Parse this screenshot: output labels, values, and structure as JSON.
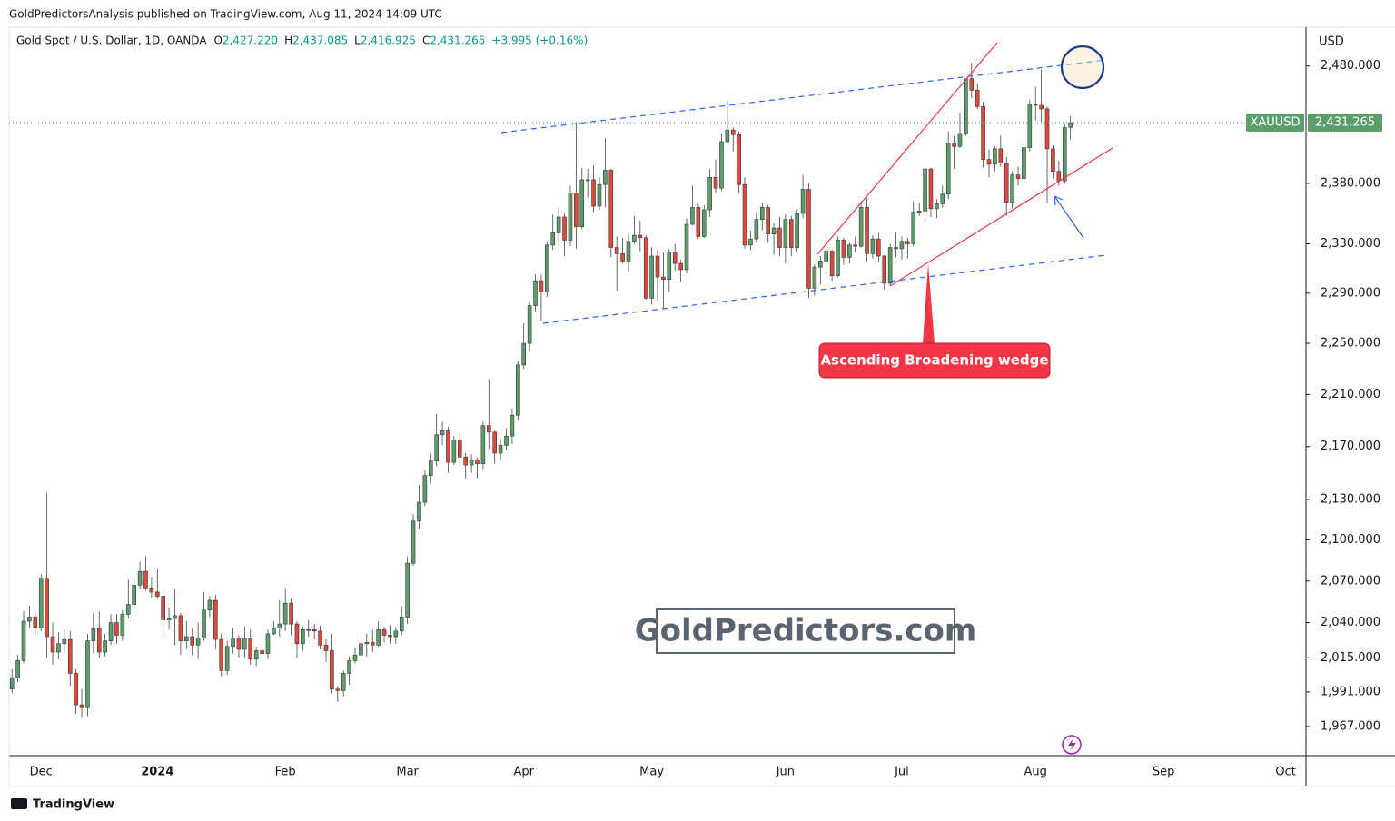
{
  "header": {
    "publisher": "GoldPredictorsAnalysis published on TradingView.com, Aug 11, 2024 14:09 UTC"
  },
  "footer": {
    "brand": "TradingView"
  },
  "chart_data": {
    "type": "candlestick",
    "title": "Gold Spot / U.S. Dollar, 1D, OANDA",
    "ohlc_legend": [
      {
        "label": "O",
        "value": "2,427.220"
      },
      {
        "label": "H",
        "value": "2,437.085"
      },
      {
        "label": "L",
        "value": "2,416.925"
      },
      {
        "label": "C",
        "value": "2,431.265"
      }
    ],
    "change": "+3.995 (+0.16%)",
    "currency": "USD",
    "symbol": "XAUUSD",
    "last_price": {
      "value": 2431.265,
      "label": "2,431.265"
    },
    "annotations": {
      "pattern_label": "Ascending Broadening wedge",
      "watermark": "GoldPredictors.com"
    },
    "up_color": "#5b9e6c",
    "down_color": "#dc4a3d",
    "log_scale": true,
    "grid": false,
    "ylim": [
      1947,
      2514
    ],
    "yticks": [
      {
        "value": 1967,
        "label": "1,967.000"
      },
      {
        "value": 1991,
        "label": "1,991.000"
      },
      {
        "value": 2015,
        "label": "2,015.000"
      },
      {
        "value": 2040,
        "label": "2,040.000"
      },
      {
        "value": 2070,
        "label": "2,070.000"
      },
      {
        "value": 2100,
        "label": "2,100.000"
      },
      {
        "value": 2130,
        "label": "2,130.000"
      },
      {
        "value": 2170,
        "label": "2,170.000"
      },
      {
        "value": 2210,
        "label": "2,210.000"
      },
      {
        "value": 2250,
        "label": "2,250.000"
      },
      {
        "value": 2290,
        "label": "2,290.000"
      },
      {
        "value": 2330,
        "label": "2,330.000"
      },
      {
        "value": 2380,
        "label": "2,380.000"
      },
      {
        "value": 2480,
        "label": "2,480.000"
      }
    ],
    "categories": [
      null,
      null,
      null,
      null,
      null,
      "Dec",
      null,
      null,
      null,
      null,
      null,
      null,
      null,
      null,
      null,
      null,
      null,
      null,
      null,
      null,
      null,
      null,
      null,
      null,
      null,
      "2024",
      null,
      null,
      null,
      null,
      null,
      null,
      null,
      null,
      null,
      null,
      null,
      null,
      null,
      null,
      null,
      null,
      null,
      null,
      null,
      null,
      null,
      "Feb",
      null,
      null,
      null,
      null,
      null,
      null,
      null,
      null,
      null,
      null,
      null,
      null,
      null,
      null,
      null,
      null,
      null,
      null,
      null,
      null,
      "Mar",
      null,
      null,
      null,
      null,
      null,
      null,
      null,
      null,
      null,
      null,
      null,
      null,
      null,
      null,
      null,
      null,
      null,
      null,
      null,
      "Apr",
      null,
      null,
      null,
      null,
      null,
      null,
      null,
      null,
      null,
      null,
      null,
      null,
      null,
      null,
      null,
      null,
      null,
      null,
      null,
      null,
      null,
      "May",
      null,
      null,
      null,
      null,
      null,
      null,
      null,
      null,
      null,
      null,
      null,
      null,
      null,
      null,
      null,
      null,
      null,
      null,
      null,
      null,
      null,
      null,
      "Jun",
      null,
      null,
      null,
      null,
      null,
      null,
      null,
      null,
      null,
      null,
      null,
      null,
      null,
      null,
      null,
      null,
      null,
      null,
      null,
      "Jul",
      null,
      null,
      null,
      null,
      null,
      null,
      null,
      null,
      null,
      null,
      null,
      null,
      null,
      null,
      null,
      null,
      null,
      null,
      null,
      null,
      null,
      null,
      "Aug",
      null,
      null,
      null,
      null,
      null,
      null,
      null,
      null,
      null,
      null,
      null,
      null,
      null,
      null,
      null,
      null,
      null,
      null,
      null,
      null,
      null,
      "Sep",
      null,
      null,
      null,
      null,
      null,
      null,
      null,
      null,
      null,
      null,
      null,
      null,
      null,
      null,
      null,
      null,
      null,
      null,
      null,
      null,
      "Oct",
      null,
      null,
      null
    ],
    "open": [
      1993,
      2001,
      2013,
      2041,
      2044,
      2036,
      2072,
      2030,
      2019,
      2025,
      2028,
      2004,
      1982,
      1980,
      2027,
      2036,
      2019,
      2027,
      2040,
      2031,
      2046,
      2053,
      2067,
      2077,
      2065,
      2062,
      2059,
      2042,
      2043,
      2045,
      2027,
      2030,
      2024,
      2029,
      2049,
      2056,
      2028,
      2006,
      2023,
      2029,
      2021,
      2029,
      2014,
      2020,
      2018,
      2032,
      2036,
      2039,
      2054,
      2039,
      2025,
      2035,
      2035,
      2034,
      2024,
      2020,
      1993,
      1992,
      2004,
      2013,
      2017,
      2025,
      2026,
      2024,
      2035,
      2031,
      2030,
      2034,
      2044,
      2083,
      2114,
      2128,
      2148,
      2159,
      2179,
      2182,
      2158,
      2175,
      2162,
      2156,
      2160,
      2157,
      2186,
      2181,
      2165,
      2171,
      2178,
      2194,
      2233,
      2250,
      2280,
      2300,
      2291,
      2329,
      2339,
      2352,
      2333,
      2372,
      2344,
      2383,
      2383,
      2361,
      2379,
      2391,
      2327,
      2322,
      2316,
      2332,
      2337,
      2335,
      2286,
      2320,
      2303,
      2301,
      2323,
      2314,
      2309,
      2346,
      2360,
      2336,
      2358,
      2385,
      2376,
      2415,
      2425,
      2421,
      2379,
      2329,
      2334,
      2350,
      2360,
      2338,
      2343,
      2327,
      2350,
      2327,
      2355,
      2375,
      2294,
      2311,
      2316,
      2324,
      2304,
      2333,
      2319,
      2329,
      2328,
      2360,
      2322,
      2334,
      2320,
      2298,
      2327,
      2326,
      2332,
      2330,
      2356,
      2357,
      2392,
      2359,
      2363,
      2371,
      2414,
      2411,
      2422,
      2469,
      2459,
      2445,
      2400,
      2396,
      2409,
      2397,
      2364,
      2387,
      2384,
      2410,
      2447,
      2446,
      2443,
      2409,
      2390,
      2382,
      2427.22,
      null,
      null,
      null,
      null,
      null,
      null,
      null,
      null,
      null,
      null,
      null,
      null,
      null,
      null,
      null,
      null,
      null,
      null,
      null,
      null,
      null,
      null,
      null,
      null,
      null,
      null,
      null,
      null,
      null,
      null,
      null,
      null,
      null,
      null,
      null,
      null,
      null,
      null,
      null,
      null
    ],
    "high": [
      2007,
      2017,
      2048,
      2052,
      2048,
      2075,
      2135,
      2040,
      2033,
      2035,
      2034,
      2007,
      1993,
      2032,
      2047,
      2048,
      2032,
      2046,
      2046,
      2049,
      2071,
      2070,
      2084,
      2088,
      2073,
      2079,
      2064,
      2051,
      2064,
      2047,
      2041,
      2036,
      2040,
      2062,
      2059,
      2060,
      2032,
      2027,
      2036,
      2031,
      2037,
      2035,
      2023,
      2025,
      2035,
      2041,
      2056,
      2065,
      2057,
      2041,
      2037,
      2042,
      2039,
      2038,
      2028,
      2032,
      1995,
      2006,
      2016,
      2022,
      2031,
      2032,
      2035,
      2041,
      2037,
      2038,
      2037,
      2052,
      2088,
      2119,
      2141,
      2152,
      2165,
      2195,
      2189,
      2185,
      2178,
      2180,
      2165,
      2164,
      2162,
      2189,
      2222,
      2182,
      2176,
      2184,
      2199,
      2236,
      2266,
      2283,
      2305,
      2305,
      2331,
      2354,
      2360,
      2355,
      2378,
      2431,
      2393,
      2392,
      2395,
      2385,
      2418,
      2392,
      2336,
      2335,
      2338,
      2353,
      2349,
      2337,
      2327,
      2325,
      2323,
      2326,
      2330,
      2317,
      2351,
      2378,
      2363,
      2362,
      2392,
      2400,
      2422,
      2450,
      2427,
      2424,
      2385,
      2341,
      2356,
      2364,
      2362,
      2347,
      2352,
      2354,
      2353,
      2358,
      2387,
      2380,
      2313,
      2320,
      2339,
      2325,
      2336,
      2335,
      2331,
      2336,
      2365,
      2368,
      2337,
      2339,
      2321,
      2330,
      2339,
      2336,
      2335,
      2365,
      2364,
      2392,
      2393,
      2367,
      2378,
      2424,
      2420,
      2440,
      2469,
      2483,
      2465,
      2449,
      2408,
      2411,
      2420,
      2402,
      2390,
      2394,
      2413,
      2451,
      2462,
      2477,
      2445,
      2412,
      2399,
      2430,
      2437.085,
      null,
      null,
      null,
      null,
      null,
      null,
      null,
      null,
      null,
      null,
      null,
      null,
      null,
      null,
      null,
      null,
      null,
      null,
      null,
      null,
      null,
      null,
      null,
      null,
      null,
      null,
      null,
      null,
      null,
      null,
      null,
      null,
      null,
      null,
      null,
      null,
      null,
      null,
      null,
      null
    ],
    "low": [
      1990,
      1998,
      2011,
      2036,
      2031,
      2034,
      2015,
      2010,
      2014,
      2018,
      1995,
      1976,
      1973,
      1974,
      2018,
      2015,
      2016,
      2024,
      2025,
      2027,
      2043,
      2047,
      2064,
      2063,
      2058,
      2057,
      2030,
      2035,
      2024,
      2017,
      2021,
      2017,
      2014,
      2027,
      2044,
      2021,
      2002,
      2003,
      2018,
      2015,
      2015,
      2010,
      2009,
      2014,
      2014,
      2031,
      2030,
      2034,
      2031,
      2015,
      2020,
      2030,
      2028,
      2021,
      2012,
      1990,
      1984,
      1988,
      1996,
      2011,
      2014,
      2016,
      2019,
      2023,
      2026,
      2025,
      2025,
      2031,
      2039,
      2081,
      2108,
      2125,
      2142,
      2155,
      2171,
      2150,
      2156,
      2155,
      2146,
      2150,
      2146,
      2153,
      2168,
      2157,
      2160,
      2167,
      2172,
      2190,
      2230,
      2244,
      2275,
      2268,
      2287,
      2325,
      2332,
      2320,
      2328,
      2326,
      2342,
      2368,
      2356,
      2358,
      2360,
      2319,
      2292,
      2314,
      2308,
      2330,
      2324,
      2285,
      2281,
      2284,
      2278,
      2291,
      2308,
      2299,
      2306,
      2345,
      2334,
      2335,
      2352,
      2372,
      2374,
      2414,
      2407,
      2372,
      2326,
      2325,
      2331,
      2341,
      2331,
      2321,
      2320,
      2314,
      2320,
      2323,
      2351,
      2286,
      2288,
      2297,
      2305,
      2300,
      2303,
      2313,
      2314,
      2323,
      2327,
      2316,
      2318,
      2315,
      2293,
      2296,
      2319,
      2317,
      2318,
      2328,
      2353,
      2349,
      2352,
      2351,
      2360,
      2367,
      2392,
      2410,
      2420,
      2452,
      2443,
      2393,
      2385,
      2390,
      2394,
      2353,
      2359,
      2378,
      2380,
      2407,
      2433,
      2432,
      2364,
      2384,
      2378,
      2380,
      2416.925,
      null,
      null,
      null,
      null,
      null,
      null,
      null,
      null,
      null,
      null,
      null,
      null,
      null,
      null,
      null,
      null,
      null,
      null,
      null,
      null,
      null,
      null,
      null,
      null,
      null,
      null,
      null,
      null,
      null,
      null,
      null,
      null,
      null,
      null,
      null,
      null,
      null,
      null,
      null,
      null
    ],
    "close": [
      2001,
      2013,
      2041,
      2044,
      2036,
      2072,
      2030,
      2019,
      2025,
      2028,
      2004,
      1982,
      1980,
      2027,
      2036,
      2019,
      2027,
      2040,
      2031,
      2046,
      2053,
      2067,
      2077,
      2065,
      2062,
      2059,
      2042,
      2043,
      2045,
      2027,
      2030,
      2024,
      2029,
      2049,
      2056,
      2028,
      2006,
      2023,
      2029,
      2021,
      2029,
      2014,
      2020,
      2018,
      2032,
      2036,
      2039,
      2054,
      2039,
      2025,
      2035,
      2035,
      2034,
      2024,
      2020,
      1993,
      1992,
      2004,
      2013,
      2017,
      2025,
      2026,
      2024,
      2035,
      2031,
      2030,
      2034,
      2044,
      2083,
      2114,
      2128,
      2148,
      2159,
      2179,
      2182,
      2158,
      2175,
      2162,
      2156,
      2160,
      2157,
      2186,
      2181,
      2165,
      2171,
      2178,
      2194,
      2233,
      2250,
      2280,
      2300,
      2291,
      2329,
      2339,
      2352,
      2333,
      2372,
      2344,
      2383,
      2383,
      2361,
      2379,
      2391,
      2327,
      2322,
      2316,
      2332,
      2337,
      2335,
      2286,
      2320,
      2303,
      2301,
      2323,
      2314,
      2309,
      2346,
      2360,
      2336,
      2358,
      2385,
      2376,
      2415,
      2425,
      2421,
      2379,
      2329,
      2334,
      2350,
      2360,
      2338,
      2343,
      2327,
      2350,
      2327,
      2355,
      2375,
      2294,
      2311,
      2316,
      2324,
      2304,
      2333,
      2319,
      2329,
      2328,
      2360,
      2322,
      2334,
      2320,
      2298,
      2327,
      2326,
      2332,
      2330,
      2356,
      2357,
      2392,
      2359,
      2363,
      2371,
      2414,
      2411,
      2422,
      2469,
      2459,
      2445,
      2400,
      2396,
      2409,
      2397,
      2364,
      2387,
      2384,
      2410,
      2447,
      2446,
      2443,
      2409,
      2390,
      2382,
      2427,
      2431.265,
      null,
      null,
      null,
      null,
      null,
      null,
      null,
      null,
      null,
      null,
      null,
      null,
      null,
      null,
      null,
      null,
      null,
      null,
      null,
      null,
      null,
      null,
      null,
      null,
      null,
      null,
      null,
      null,
      null,
      null,
      null,
      null,
      null,
      null,
      null,
      null,
      null,
      null,
      null,
      null
    ]
  }
}
